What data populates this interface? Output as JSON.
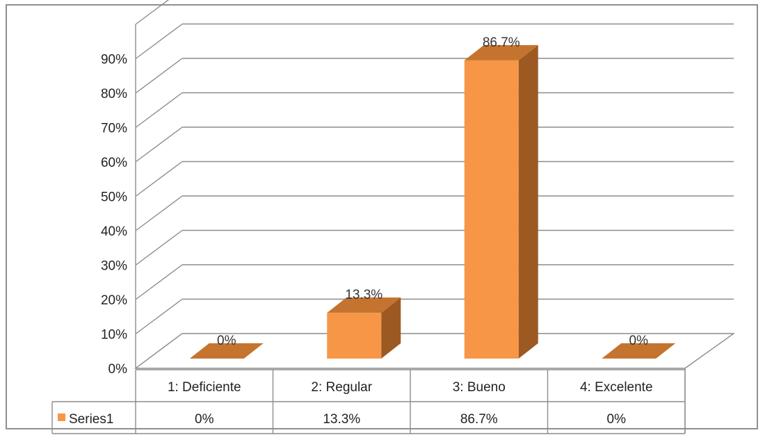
{
  "chart_data": {
    "type": "bar",
    "categories": [
      "1: Deficiente",
      "2: Regular",
      "3: Bueno",
      "4: Excelente"
    ],
    "series": [
      {
        "name": "Series1",
        "values": [
          0,
          13.3,
          86.7,
          0
        ],
        "color": "#f79646",
        "side_color": "#9c5a22",
        "top_color": "#c4742f"
      }
    ],
    "data_labels": [
      "0%",
      "13.3%",
      "86.7%",
      "0%"
    ],
    "table_values": [
      "0%",
      "13.3%",
      "86.7%",
      "0%"
    ],
    "y_ticks": [
      "0%",
      "10%",
      "20%",
      "30%",
      "40%",
      "50%",
      "60%",
      "70%",
      "80%",
      "90%"
    ],
    "ylim": [
      0,
      100
    ],
    "grid": true,
    "legend": "data-table"
  }
}
